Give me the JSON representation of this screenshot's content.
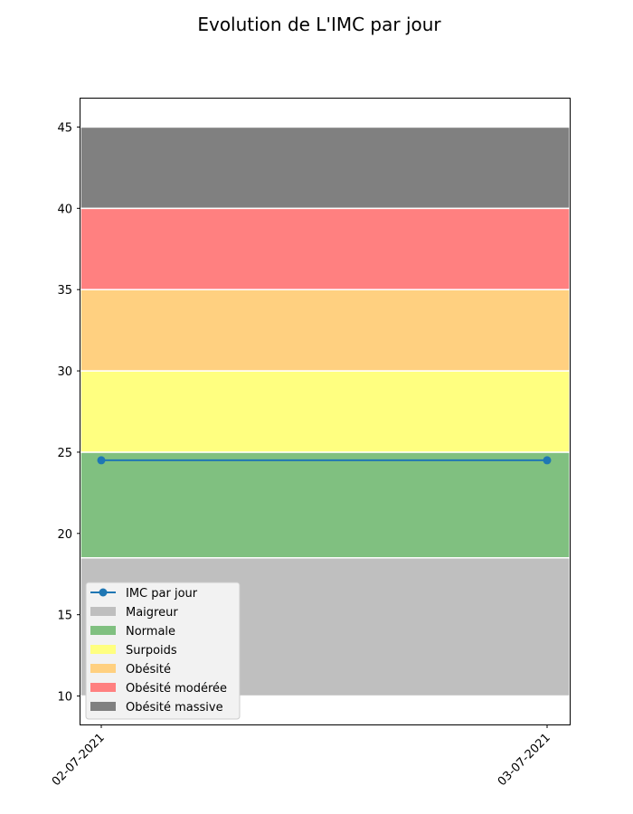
{
  "chart_data": {
    "type": "line",
    "title": "Evolution de L'IMC par jour",
    "xlabel": "",
    "ylabel": "",
    "x": [
      "02-07-2021",
      "03-07-2021"
    ],
    "series": [
      {
        "name": "IMC par jour",
        "values": [
          24.5,
          24.5
        ],
        "color": "#1f77b4"
      }
    ],
    "bands": [
      {
        "name": "Maigreur",
        "from": 10,
        "to": 18.5,
        "color": "#bfbfbf"
      },
      {
        "name": "Normale",
        "from": 18.5,
        "to": 25,
        "color": "#80c080"
      },
      {
        "name": "Surpoids",
        "from": 25,
        "to": 30,
        "color": "#ffff80"
      },
      {
        "name": "Obésité",
        "from": 30,
        "to": 35,
        "color": "#ffd080"
      },
      {
        "name": "Obésité modérée",
        "from": 35,
        "to": 40,
        "color": "#ff8080"
      },
      {
        "name": "Obésité massive",
        "from": 40,
        "to": 45,
        "color": "#808080"
      }
    ],
    "yticks": [
      10,
      15,
      20,
      25,
      30,
      35,
      40,
      45
    ],
    "ylim": [
      8.25,
      46.75
    ],
    "grid": false,
    "legend_position": "lower-left"
  }
}
